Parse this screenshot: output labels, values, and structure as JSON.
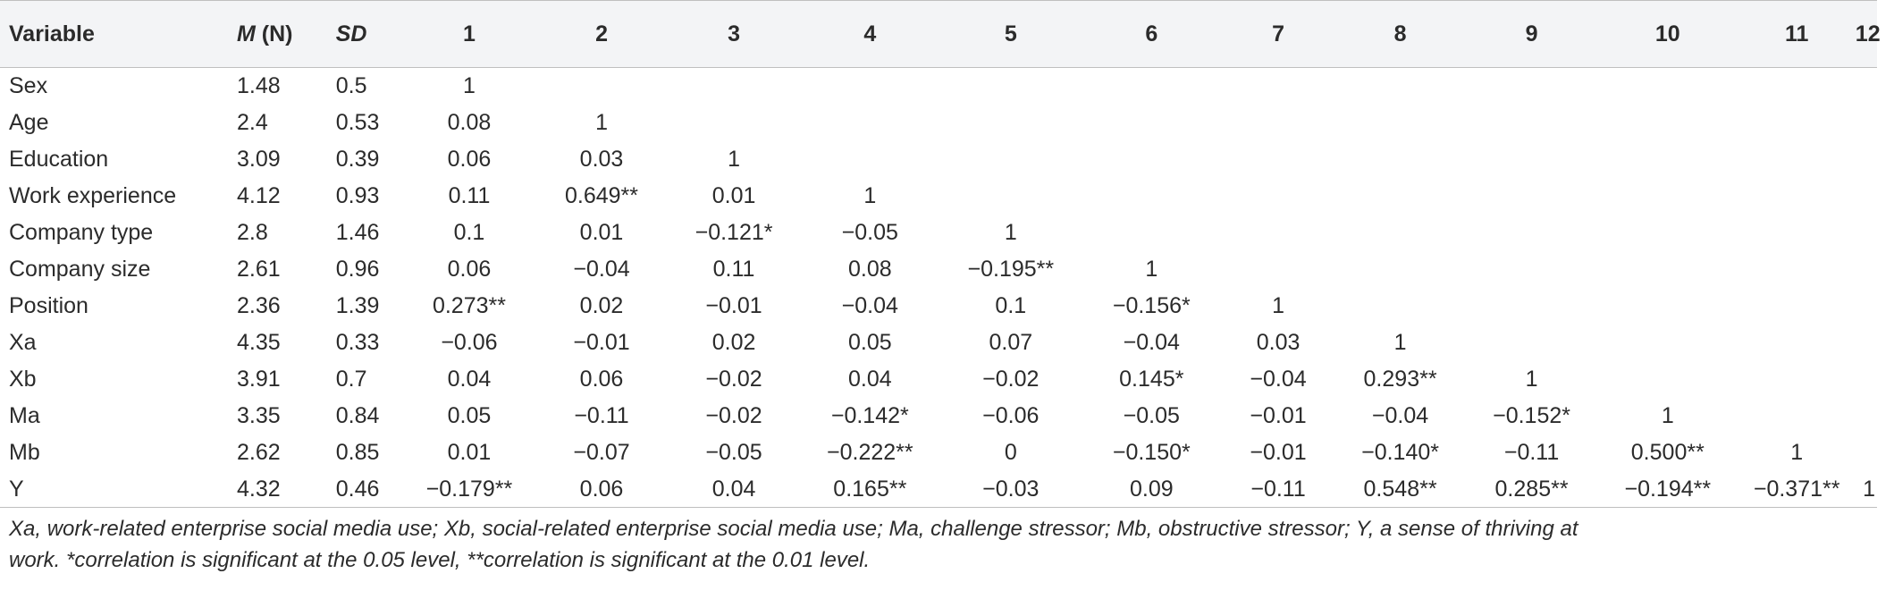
{
  "header": {
    "variable": "Variable",
    "m_letter": "M",
    "m_n": " (N)",
    "sd": "SD",
    "corr_cols": [
      "1",
      "2",
      "3",
      "4",
      "5",
      "6",
      "7",
      "8",
      "9",
      "10",
      "11",
      "12"
    ]
  },
  "rows": [
    {
      "name": "Sex",
      "m": "1.48",
      "sd": "0.5",
      "cells": [
        "1",
        "",
        "",
        "",
        "",
        "",
        "",
        "",
        "",
        "",
        "",
        ""
      ]
    },
    {
      "name": "Age",
      "m": "2.4",
      "sd": "0.53",
      "cells": [
        "0.08",
        "1",
        "",
        "",
        "",
        "",
        "",
        "",
        "",
        "",
        "",
        ""
      ]
    },
    {
      "name": "Education",
      "m": "3.09",
      "sd": "0.39",
      "cells": [
        "0.06",
        "0.03",
        "1",
        "",
        "",
        "",
        "",
        "",
        "",
        "",
        "",
        ""
      ]
    },
    {
      "name": "Work experience",
      "m": "4.12",
      "sd": "0.93",
      "cells": [
        "0.11",
        "0.649**",
        "0.01",
        "1",
        "",
        "",
        "",
        "",
        "",
        "",
        "",
        ""
      ]
    },
    {
      "name": "Company type",
      "m": "2.8",
      "sd": "1.46",
      "cells": [
        "0.1",
        "0.01",
        "−0.121*",
        "−0.05",
        "1",
        "",
        "",
        "",
        "",
        "",
        "",
        ""
      ]
    },
    {
      "name": "Company size",
      "m": "2.61",
      "sd": "0.96",
      "cells": [
        "0.06",
        "−0.04",
        "0.11",
        "0.08",
        "−0.195**",
        "1",
        "",
        "",
        "",
        "",
        "",
        ""
      ]
    },
    {
      "name": "Position",
      "m": "2.36",
      "sd": "1.39",
      "cells": [
        "0.273**",
        "0.02",
        "−0.01",
        "−0.04",
        "0.1",
        "−0.156*",
        "1",
        "",
        "",
        "",
        "",
        ""
      ]
    },
    {
      "name": "Xa",
      "m": "4.35",
      "sd": "0.33",
      "cells": [
        "−0.06",
        "−0.01",
        "0.02",
        "0.05",
        "0.07",
        "−0.04",
        "0.03",
        "1",
        "",
        "",
        "",
        ""
      ]
    },
    {
      "name": "Xb",
      "m": "3.91",
      "sd": "0.7",
      "cells": [
        "0.04",
        "0.06",
        "−0.02",
        "0.04",
        "−0.02",
        "0.145*",
        "−0.04",
        "0.293**",
        "1",
        "",
        "",
        ""
      ]
    },
    {
      "name": "Ma",
      "m": "3.35",
      "sd": "0.84",
      "cells": [
        "0.05",
        "−0.11",
        "−0.02",
        "−0.142*",
        "−0.06",
        "−0.05",
        "−0.01",
        "−0.04",
        "−0.152*",
        "1",
        "",
        ""
      ]
    },
    {
      "name": "Mb",
      "m": "2.62",
      "sd": "0.85",
      "cells": [
        "0.01",
        "−0.07",
        "−0.05",
        "−0.222**",
        "0",
        "−0.150*",
        "−0.01",
        "−0.140*",
        "−0.11",
        "0.500**",
        "1",
        ""
      ]
    },
    {
      "name": "Y",
      "m": "4.32",
      "sd": "0.46",
      "cells": [
        "−0.179**",
        "0.06",
        "0.04",
        "0.165**",
        "−0.03",
        "0.09",
        "−0.11",
        "0.548**",
        "0.285**",
        "−0.194**",
        "−0.371**",
        "1"
      ]
    }
  ],
  "note": {
    "line1": "Xa, work-related enterprise social media use; Xb, social-related enterprise social media use; Ma, challenge stressor; Mb, obstructive stressor; Y, a sense of thriving at",
    "line2": "work. *correlation is significant at the 0.05 level, **correlation is significant at the 0.01 level."
  },
  "colors": {
    "header_bg": "#f3f4f6",
    "rule": "#bfbfbf",
    "text": "#2b2b2b"
  }
}
